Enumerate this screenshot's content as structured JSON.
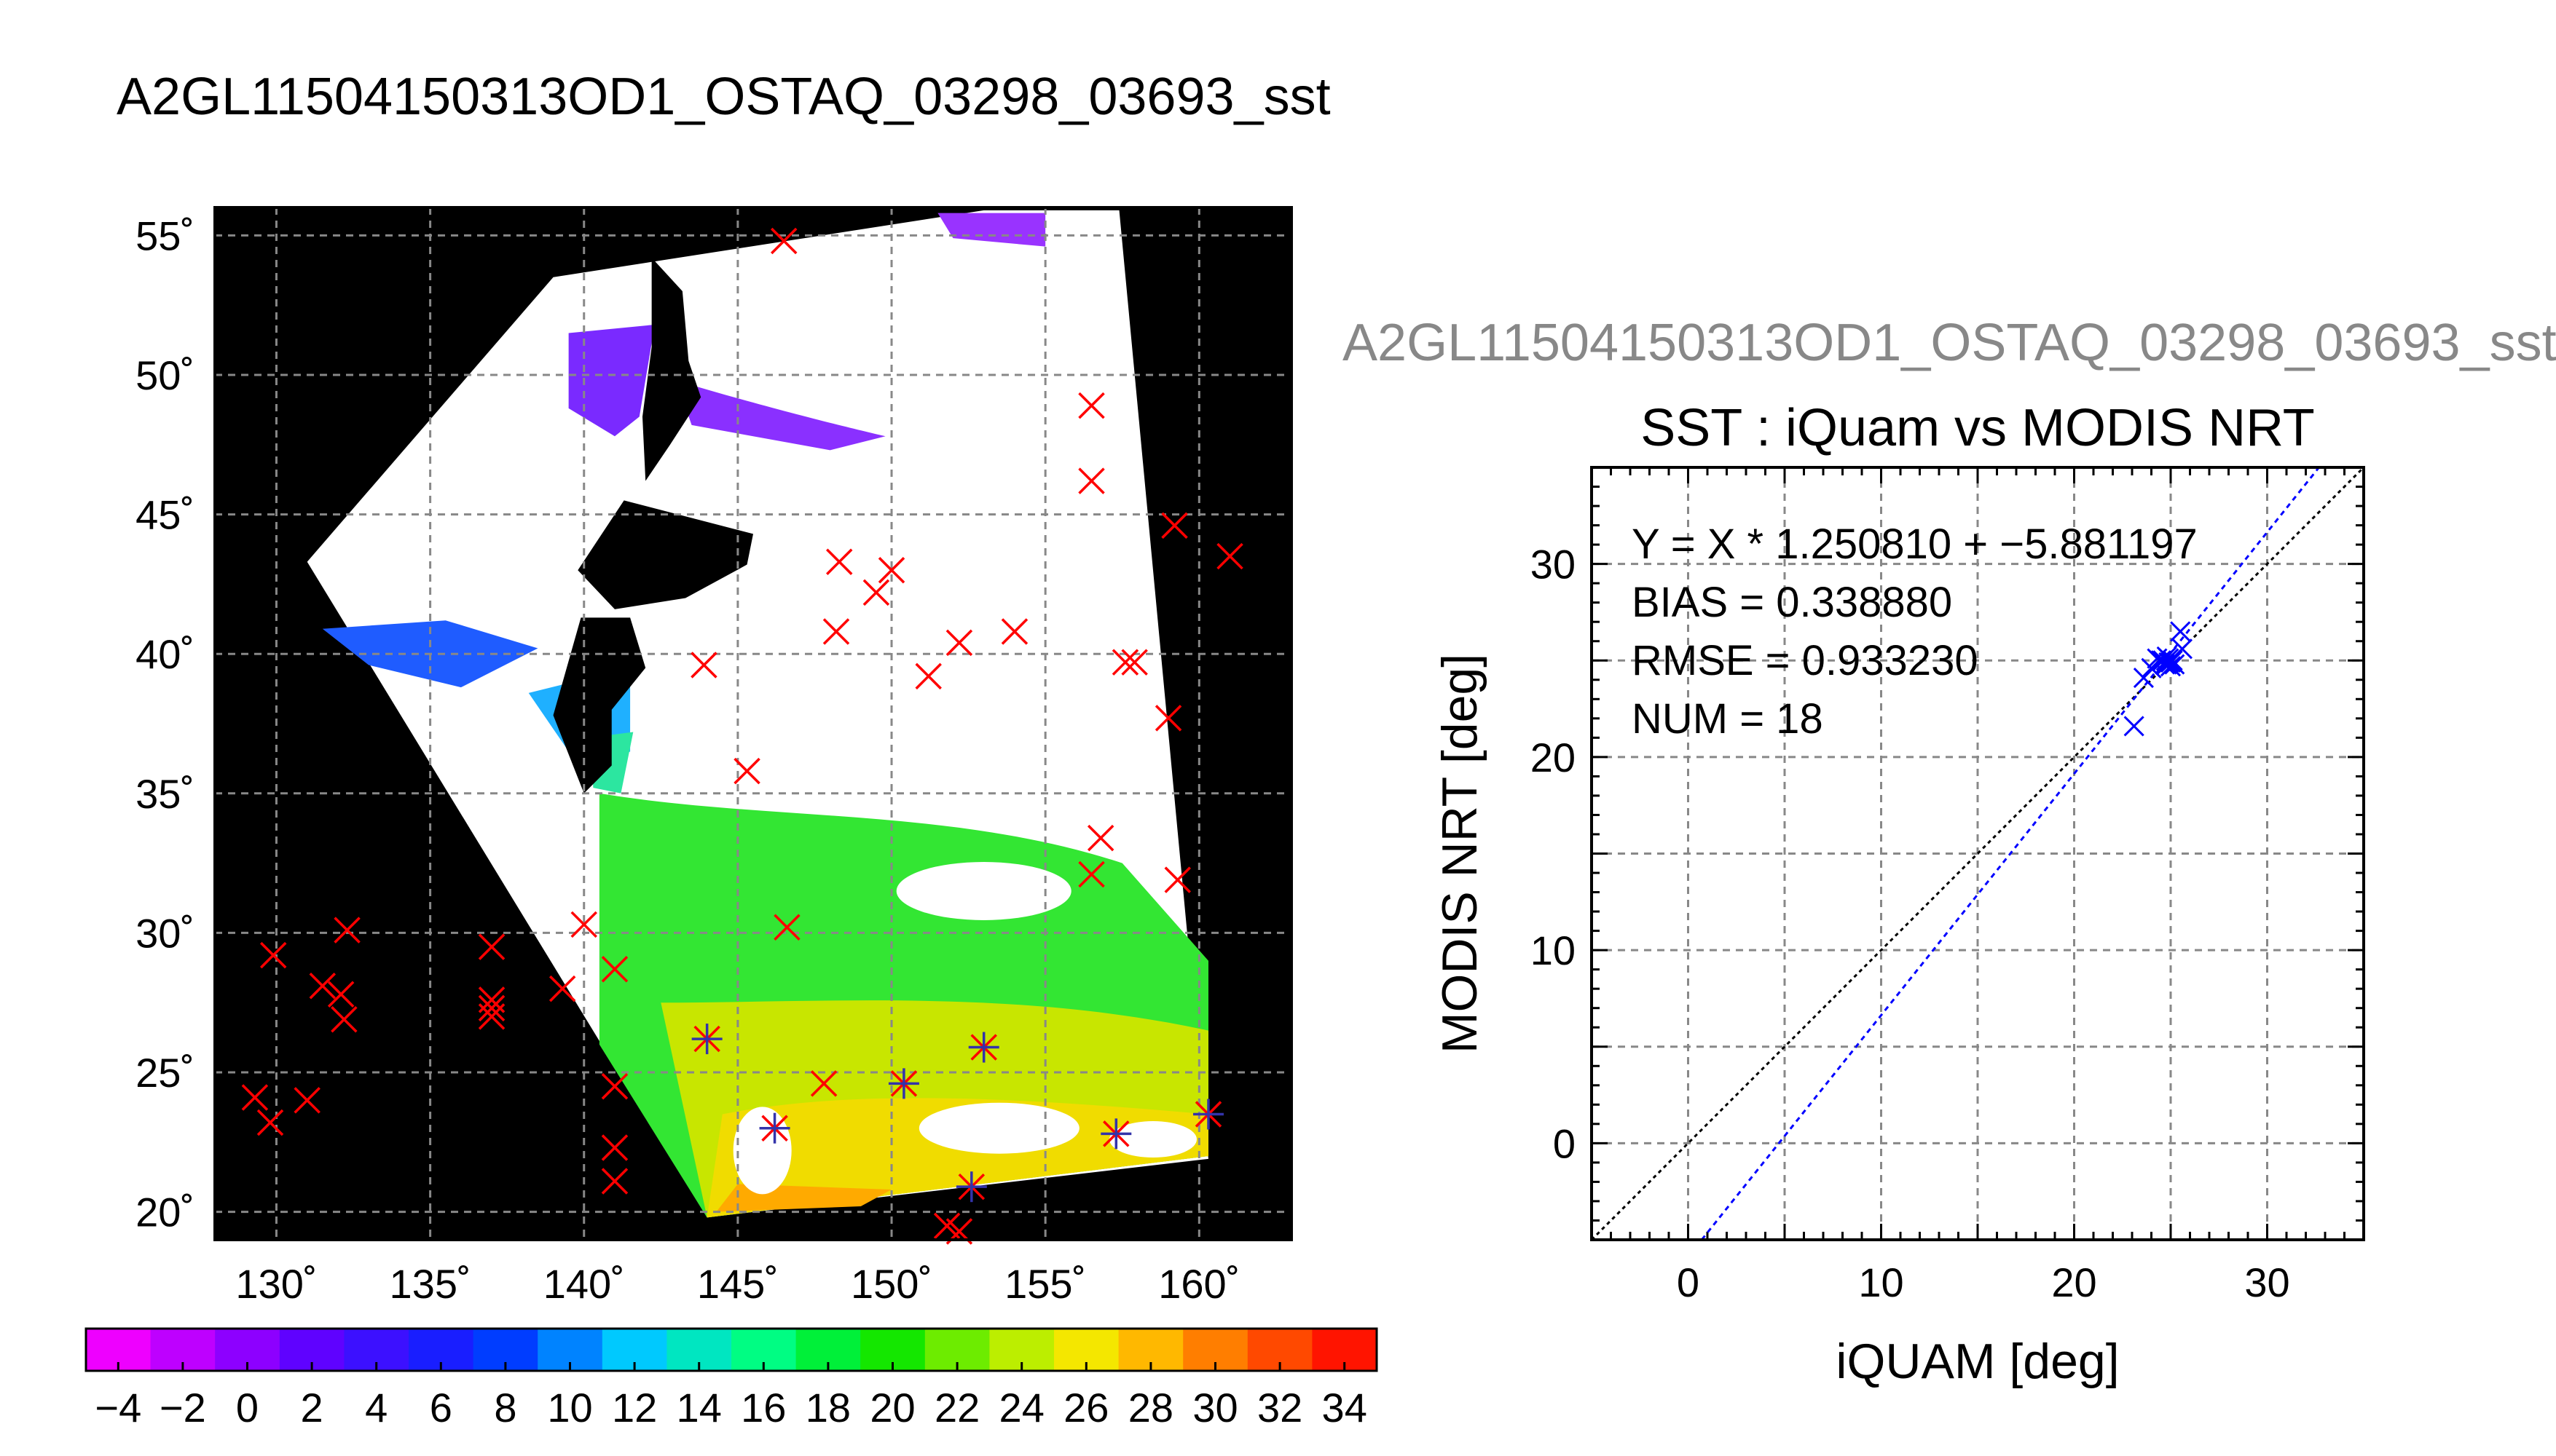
{
  "title": "A2GL11504150313OD1_OSTAQ_03298_03693_sst",
  "colors": {
    "land": "#000000",
    "cloud": "#ffffff",
    "match_marker": "#ff0000",
    "matched_marker": "#3333aa",
    "scatter_marker": "#0000ff",
    "fit_line": "#0000ff",
    "identity_line": "#000000",
    "grid": "#888888"
  },
  "map": {
    "lat_labels": [
      "55˚",
      "50˚",
      "45˚",
      "40˚",
      "35˚",
      "30˚",
      "25˚",
      "20˚"
    ],
    "lon_labels": [
      "130˚",
      "135˚",
      "140˚",
      "145˚",
      "150˚",
      "155˚",
      "160˚"
    ],
    "lat_range": [
      19,
      56
    ],
    "lon_range": [
      128,
      163
    ],
    "match_points": [
      [
        146.5,
        54.8
      ],
      [
        156.5,
        48.9
      ],
      [
        156.5,
        46.2
      ],
      [
        159.2,
        44.6
      ],
      [
        161.0,
        43.5
      ],
      [
        148.3,
        43.3
      ],
      [
        150.0,
        43.0
      ],
      [
        149.5,
        42.2
      ],
      [
        148.2,
        40.8
      ],
      [
        154.0,
        40.8
      ],
      [
        152.2,
        40.4
      ],
      [
        151.2,
        39.2
      ],
      [
        143.9,
        39.6
      ],
      [
        157.6,
        39.7
      ],
      [
        157.9,
        39.7
      ],
      [
        159.0,
        37.7
      ],
      [
        145.3,
        35.8
      ],
      [
        156.8,
        33.4
      ],
      [
        156.5,
        32.1
      ],
      [
        159.3,
        31.9
      ],
      [
        146.6,
        30.2
      ],
      [
        140.0,
        30.3
      ],
      [
        132.3,
        30.1
      ],
      [
        137.0,
        29.5
      ],
      [
        129.9,
        29.2
      ],
      [
        141.0,
        28.7
      ],
      [
        131.5,
        28.1
      ],
      [
        132.1,
        27.8
      ],
      [
        139.3,
        28.0
      ],
      [
        137.0,
        27.6
      ],
      [
        137.0,
        27.3
      ],
      [
        137.0,
        27.0
      ],
      [
        132.2,
        26.9
      ],
      [
        144.0,
        26.2
      ],
      [
        153.0,
        25.9
      ],
      [
        141.0,
        24.5
      ],
      [
        147.8,
        24.6
      ],
      [
        150.4,
        24.6
      ],
      [
        129.3,
        24.1
      ],
      [
        131.0,
        24.0
      ],
      [
        146.2,
        23.0
      ],
      [
        157.3,
        22.8
      ],
      [
        160.3,
        23.5
      ],
      [
        129.8,
        23.2
      ],
      [
        141.0,
        22.3
      ],
      [
        141.0,
        21.1
      ],
      [
        152.6,
        20.9
      ],
      [
        151.8,
        19.5
      ],
      [
        152.2,
        19.3
      ]
    ],
    "matched_points": [
      [
        144.0,
        26.2
      ],
      [
        153.0,
        25.9
      ],
      [
        150.4,
        24.6
      ],
      [
        146.2,
        23.0
      ],
      [
        157.3,
        22.8
      ],
      [
        160.3,
        23.5
      ],
      [
        152.6,
        20.9
      ]
    ]
  },
  "colorbar": {
    "min": -5,
    "max": 35,
    "step": 2,
    "tick_labels": [
      "−4",
      "−2",
      "0",
      "2",
      "4",
      "6",
      "8",
      "10",
      "12",
      "14",
      "16",
      "18",
      "20",
      "22",
      "24",
      "26",
      "28",
      "30",
      "32",
      "34"
    ],
    "tick_values": [
      -4,
      -2,
      0,
      2,
      4,
      6,
      8,
      10,
      12,
      14,
      16,
      18,
      20,
      22,
      24,
      26,
      28,
      30,
      32,
      34
    ]
  },
  "chart_data": {
    "type": "scatter",
    "title": "SST : iQuam vs MODIS NRT",
    "xlabel": "iQUAM [deg]",
    "ylabel": "MODIS NRT [deg]",
    "xlim": [
      -5,
      35
    ],
    "ylim": [
      -5,
      35
    ],
    "x_ticks": [
      0,
      10,
      20,
      30
    ],
    "y_ticks": [
      0,
      10,
      20,
      30
    ],
    "x_tick_labels": [
      "0",
      "10",
      "20",
      "30"
    ],
    "y_tick_labels": [
      "0",
      "10",
      "20",
      "30"
    ],
    "grid": true,
    "stats": [
      "Y = X * 1.250810 + −5.881197",
      "BIAS = 0.338880",
      "RMSE = 0.933230",
      "NUM = 18"
    ],
    "fit": {
      "slope": 1.25081,
      "intercept": -5.881197
    },
    "identity_line": true,
    "points": [
      [
        23.1,
        21.6
      ],
      [
        23.6,
        24.1
      ],
      [
        24.0,
        24.6
      ],
      [
        24.3,
        25.1
      ],
      [
        24.5,
        25.0
      ],
      [
        24.7,
        24.8
      ],
      [
        24.8,
        25.2
      ],
      [
        24.9,
        25.1
      ],
      [
        25.0,
        24.9
      ],
      [
        25.0,
        24.7
      ],
      [
        25.1,
        25.0
      ],
      [
        25.2,
        24.8
      ],
      [
        25.5,
        26.5
      ],
      [
        25.6,
        25.6
      ],
      [
        24.6,
        25.0
      ],
      [
        24.9,
        24.9
      ],
      [
        25.0,
        25.0
      ],
      [
        24.8,
        24.8
      ]
    ]
  }
}
